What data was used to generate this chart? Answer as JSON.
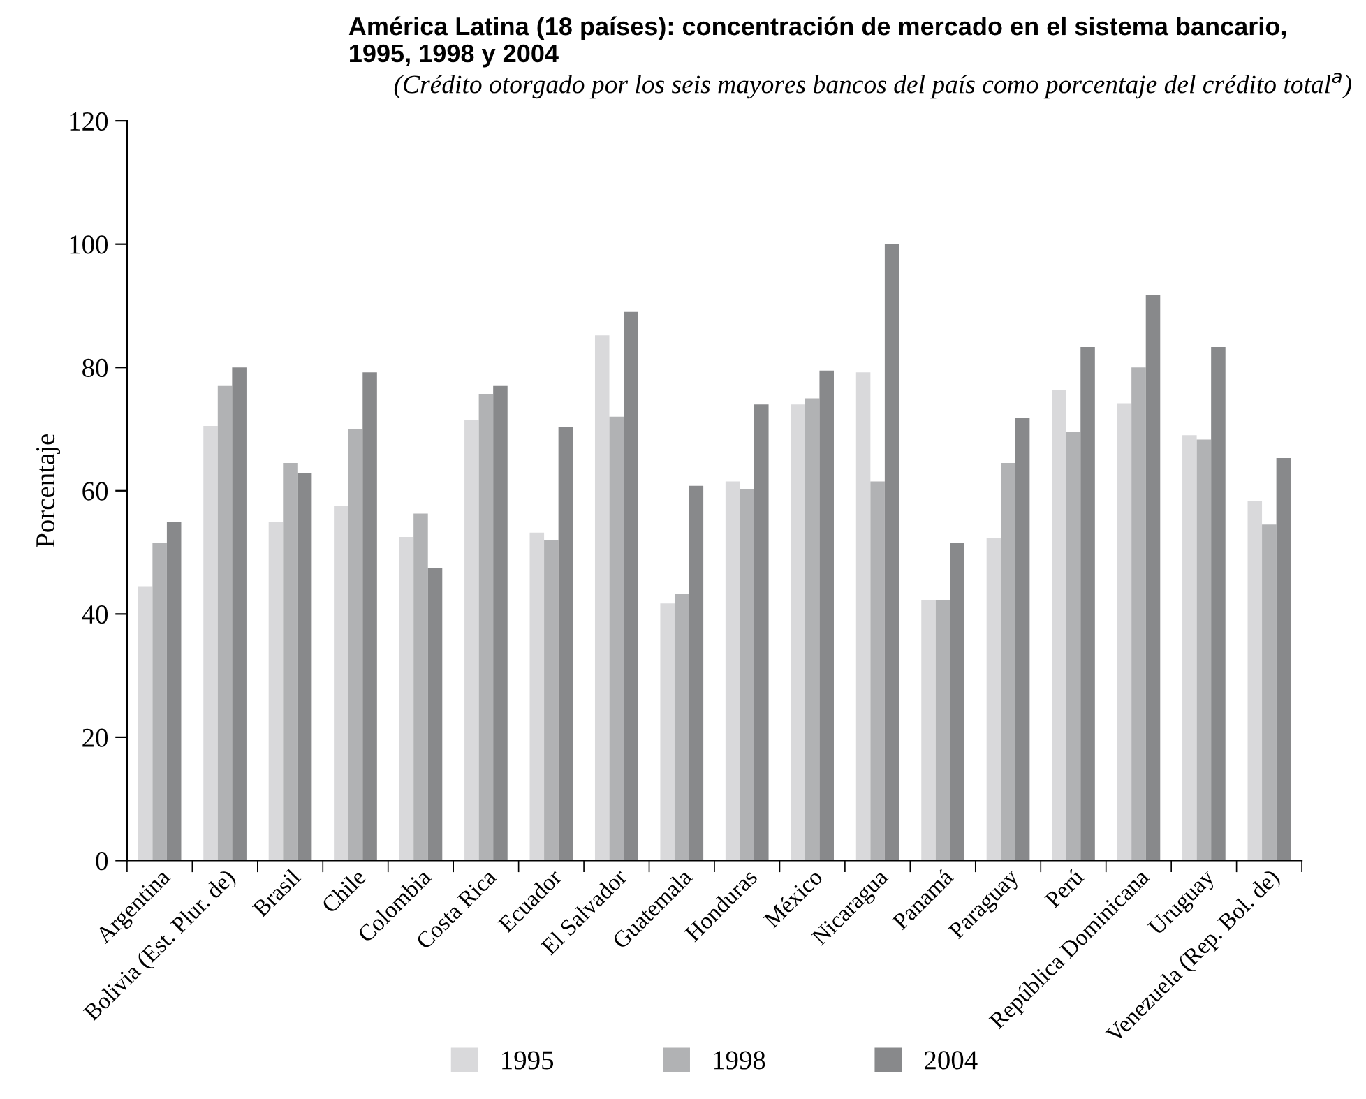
{
  "chart_data": {
    "type": "bar",
    "title": "América Latina (18 países): concentración de mercado en el sistema bancario,\n1995, 1998 y 2004",
    "subtitle": "(Crédito otorgado por los seis mayores bancos del país como porcentaje del crédito total$^{a}$)",
    "ylabel": "Porcentaje",
    "categories": [
      "Argentina",
      "Bolivia (Est. Plur. de)",
      "Brasil",
      "Chile",
      "Colombia",
      "Costa Rica",
      "Ecuador",
      "El Salvador",
      "Guatemala",
      "Honduras",
      "México",
      "Nicaragua",
      "Panamá",
      "Paraguay",
      "Perú",
      "República Dominicana",
      "Uruguay",
      "Venezuela (Rep. Bol. de)"
    ],
    "series": [
      {
        "name": "1995",
        "color": "#d9d9db",
        "values": [
          44.5,
          70.5,
          55,
          57.5,
          52.5,
          71.5,
          53.2,
          85.2,
          41.7,
          61.5,
          74,
          79.2,
          42.2,
          52.3,
          76.3,
          74.2,
          69,
          58.3
        ]
      },
      {
        "name": "1998",
        "color": "#b1b2b4",
        "values": [
          51.5,
          77,
          64.5,
          70,
          56.3,
          75.7,
          52,
          72,
          43.2,
          60.3,
          75,
          61.5,
          42.2,
          64.5,
          69.5,
          80,
          68.3,
          54.5
        ]
      },
      {
        "name": "2004",
        "color": "#88898b",
        "values": [
          55,
          80,
          62.8,
          79.2,
          47.5,
          77,
          70.3,
          89,
          60.8,
          74,
          79.5,
          100,
          51.5,
          71.8,
          83.3,
          91.8,
          83.3,
          65.3
        ]
      }
    ],
    "ylim": [
      0,
      120
    ],
    "yticks": [
      0,
      20,
      40,
      60,
      80,
      100,
      120
    ],
    "grid": false,
    "legend": "bottom"
  }
}
